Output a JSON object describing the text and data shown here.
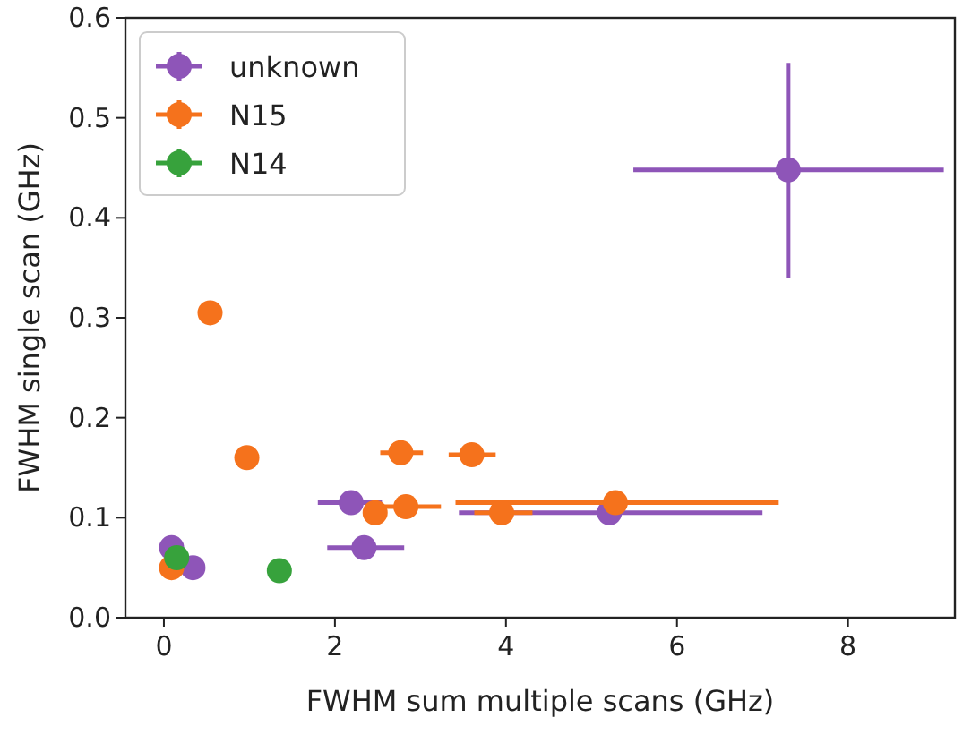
{
  "chart_data": {
    "type": "scatter",
    "xlabel": "FWHM sum multiple scans (GHz)",
    "ylabel": "FWHM single scan (GHz)",
    "xlim": [
      -0.45,
      9.25
    ],
    "ylim": [
      0,
      0.6
    ],
    "xticks": [
      0,
      2,
      4,
      6,
      8
    ],
    "yticks": [
      {
        "value": 0,
        "label": "0.0"
      },
      {
        "value": 0.1,
        "label": "0.1"
      },
      {
        "value": 0.2,
        "label": "0.2"
      },
      {
        "value": 0.3,
        "label": "0.3"
      },
      {
        "value": 0.4,
        "label": "0.4"
      },
      {
        "value": 0.5,
        "label": "0.5"
      },
      {
        "value": 0.6,
        "label": "0.6"
      }
    ],
    "grid": false,
    "legend": "top left",
    "marker": "circle",
    "series": [
      {
        "name": "unknown",
        "color": "#8e55b8",
        "x": [
          0.09,
          0.34,
          2.19,
          2.34,
          5.21,
          7.3
        ],
        "values": [
          0.07,
          0.05,
          0.115,
          0.07,
          0.105,
          0.448
        ],
        "xerrors": [
          null,
          null,
          [
            1.8,
            2.55
          ],
          [
            1.91,
            2.81
          ],
          [
            3.45,
            7.0
          ],
          [
            5.49,
            9.12
          ]
        ],
        "errors": [
          null,
          null,
          null,
          null,
          null,
          [
            0.34,
            0.555
          ]
        ]
      },
      {
        "name": "N15",
        "color": "#f5721c",
        "x": [
          0.09,
          0.54,
          0.97,
          2.77,
          2.47,
          2.83,
          3.6,
          3.95,
          5.28
        ],
        "values": [
          0.05,
          0.305,
          0.16,
          0.165,
          0.105,
          0.111,
          0.163,
          0.105,
          0.115
        ],
        "xerrors": [
          null,
          null,
          null,
          [
            2.53,
            3.03
          ],
          null,
          [
            2.55,
            3.24
          ],
          [
            3.33,
            3.88
          ],
          [
            3.63,
            4.31
          ],
          [
            3.41,
            7.19
          ]
        ],
        "errors": [
          null,
          null,
          null,
          null,
          null,
          null,
          [
            0.155,
            0.171
          ],
          null,
          [
            0.105,
            0.125
          ]
        ]
      },
      {
        "name": "N14",
        "color": "#37a23c",
        "x": [
          0.15,
          1.35
        ],
        "values": [
          0.06,
          0.047
        ]
      }
    ]
  }
}
